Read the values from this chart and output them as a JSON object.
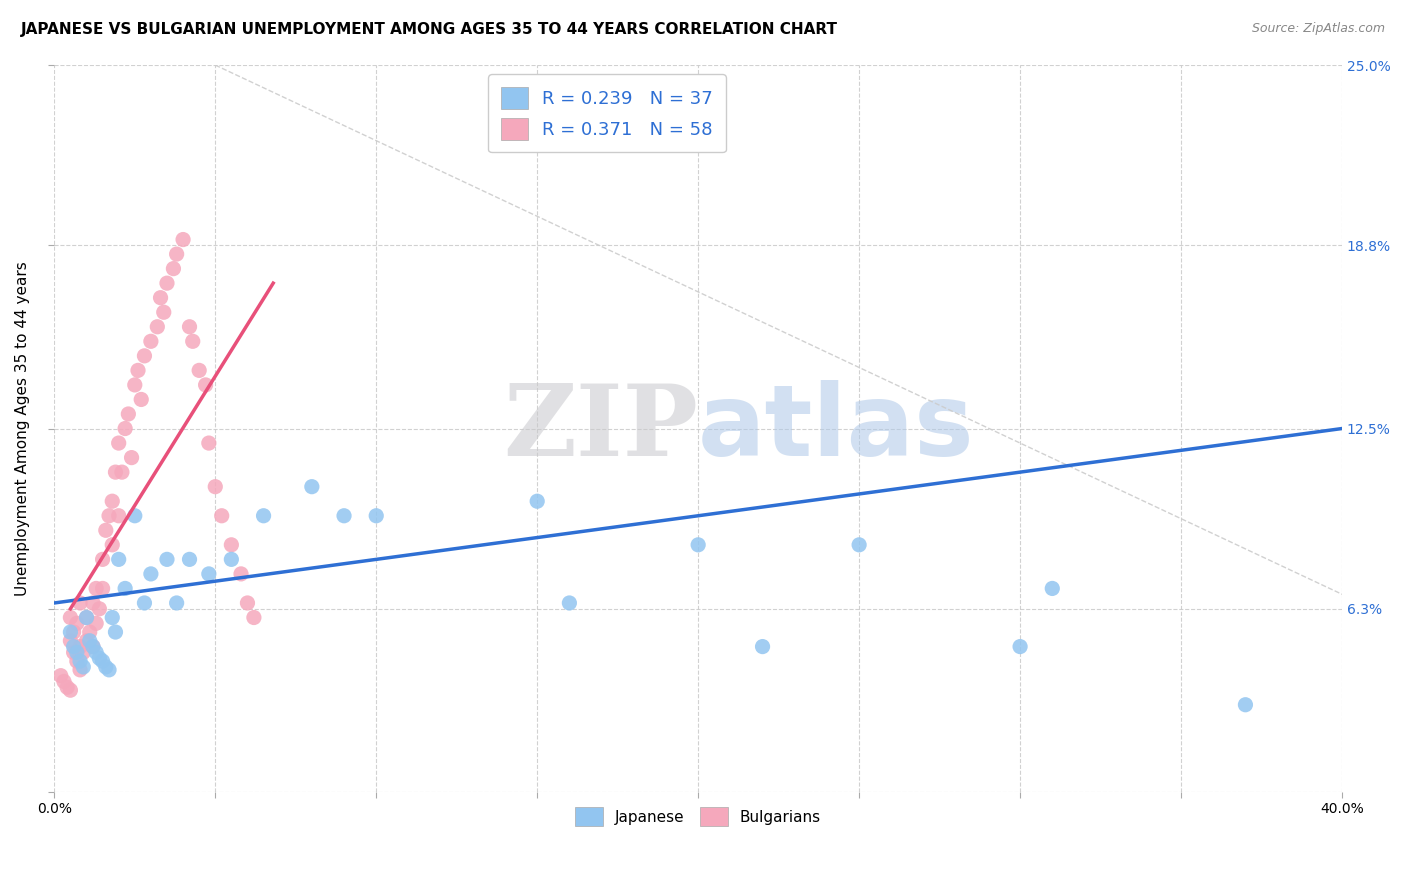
{
  "title": "JAPANESE VS BULGARIAN UNEMPLOYMENT AMONG AGES 35 TO 44 YEARS CORRELATION CHART",
  "source": "Source: ZipAtlas.com",
  "ylabel": "Unemployment Among Ages 35 to 44 years",
  "xlim": [
    0.0,
    0.4
  ],
  "ylim": [
    0.0,
    0.25
  ],
  "xtick_positions": [
    0.0,
    0.05,
    0.1,
    0.15,
    0.2,
    0.25,
    0.3,
    0.35,
    0.4
  ],
  "xticklabels": [
    "0.0%",
    "",
    "",
    "",
    "",
    "",
    "",
    "",
    "40.0%"
  ],
  "ytick_positions": [
    0.0,
    0.063,
    0.125,
    0.188,
    0.25
  ],
  "ytick_labels": [
    "",
    "6.3%",
    "12.5%",
    "18.8%",
    "25.0%"
  ],
  "watermark_zip": "ZIP",
  "watermark_atlas": "atlas",
  "japanese_R": 0.239,
  "japanese_N": 37,
  "bulgarian_R": 0.371,
  "bulgarian_N": 58,
  "japanese_color": "#92C5F0",
  "bulgarian_color": "#F5A8BC",
  "japanese_line_color": "#2E6FD4",
  "bulgarian_line_color": "#E8507A",
  "diag_line_color": "#cccccc",
  "japanese_line_x": [
    0.0,
    0.4
  ],
  "japanese_line_y": [
    0.065,
    0.125
  ],
  "bulgarian_line_x": [
    0.005,
    0.068
  ],
  "bulgarian_line_y": [
    0.063,
    0.175
  ],
  "diag_line_x": [
    0.05,
    0.4
  ],
  "diag_line_y": [
    0.25,
    0.068
  ],
  "japanese_scatter_x": [
    0.005,
    0.006,
    0.007,
    0.008,
    0.009,
    0.01,
    0.011,
    0.012,
    0.013,
    0.014,
    0.015,
    0.016,
    0.017,
    0.018,
    0.019,
    0.02,
    0.022,
    0.025,
    0.028,
    0.03,
    0.035,
    0.038,
    0.042,
    0.048,
    0.055,
    0.065,
    0.08,
    0.09,
    0.1,
    0.15,
    0.16,
    0.2,
    0.22,
    0.25,
    0.3,
    0.31,
    0.37
  ],
  "japanese_scatter_y": [
    0.055,
    0.05,
    0.048,
    0.045,
    0.043,
    0.06,
    0.052,
    0.05,
    0.048,
    0.046,
    0.045,
    0.043,
    0.042,
    0.06,
    0.055,
    0.08,
    0.07,
    0.095,
    0.065,
    0.075,
    0.08,
    0.065,
    0.08,
    0.075,
    0.08,
    0.095,
    0.105,
    0.095,
    0.095,
    0.1,
    0.065,
    0.085,
    0.05,
    0.085,
    0.05,
    0.07,
    0.03
  ],
  "bulgarian_scatter_x": [
    0.002,
    0.003,
    0.004,
    0.005,
    0.005,
    0.005,
    0.006,
    0.006,
    0.007,
    0.007,
    0.008,
    0.008,
    0.008,
    0.009,
    0.01,
    0.01,
    0.011,
    0.012,
    0.012,
    0.013,
    0.013,
    0.014,
    0.015,
    0.015,
    0.016,
    0.017,
    0.018,
    0.018,
    0.019,
    0.02,
    0.02,
    0.021,
    0.022,
    0.023,
    0.024,
    0.025,
    0.026,
    0.027,
    0.028,
    0.03,
    0.032,
    0.033,
    0.034,
    0.035,
    0.037,
    0.038,
    0.04,
    0.042,
    0.043,
    0.045,
    0.047,
    0.048,
    0.05,
    0.052,
    0.055,
    0.058,
    0.06,
    0.062
  ],
  "bulgarian_scatter_y": [
    0.04,
    0.038,
    0.036,
    0.035,
    0.052,
    0.06,
    0.048,
    0.055,
    0.045,
    0.058,
    0.042,
    0.05,
    0.065,
    0.048,
    0.052,
    0.06,
    0.055,
    0.05,
    0.065,
    0.058,
    0.07,
    0.063,
    0.07,
    0.08,
    0.09,
    0.095,
    0.085,
    0.1,
    0.11,
    0.095,
    0.12,
    0.11,
    0.125,
    0.13,
    0.115,
    0.14,
    0.145,
    0.135,
    0.15,
    0.155,
    0.16,
    0.17,
    0.165,
    0.175,
    0.18,
    0.185,
    0.19,
    0.16,
    0.155,
    0.145,
    0.14,
    0.12,
    0.105,
    0.095,
    0.085,
    0.075,
    0.065,
    0.06
  ]
}
